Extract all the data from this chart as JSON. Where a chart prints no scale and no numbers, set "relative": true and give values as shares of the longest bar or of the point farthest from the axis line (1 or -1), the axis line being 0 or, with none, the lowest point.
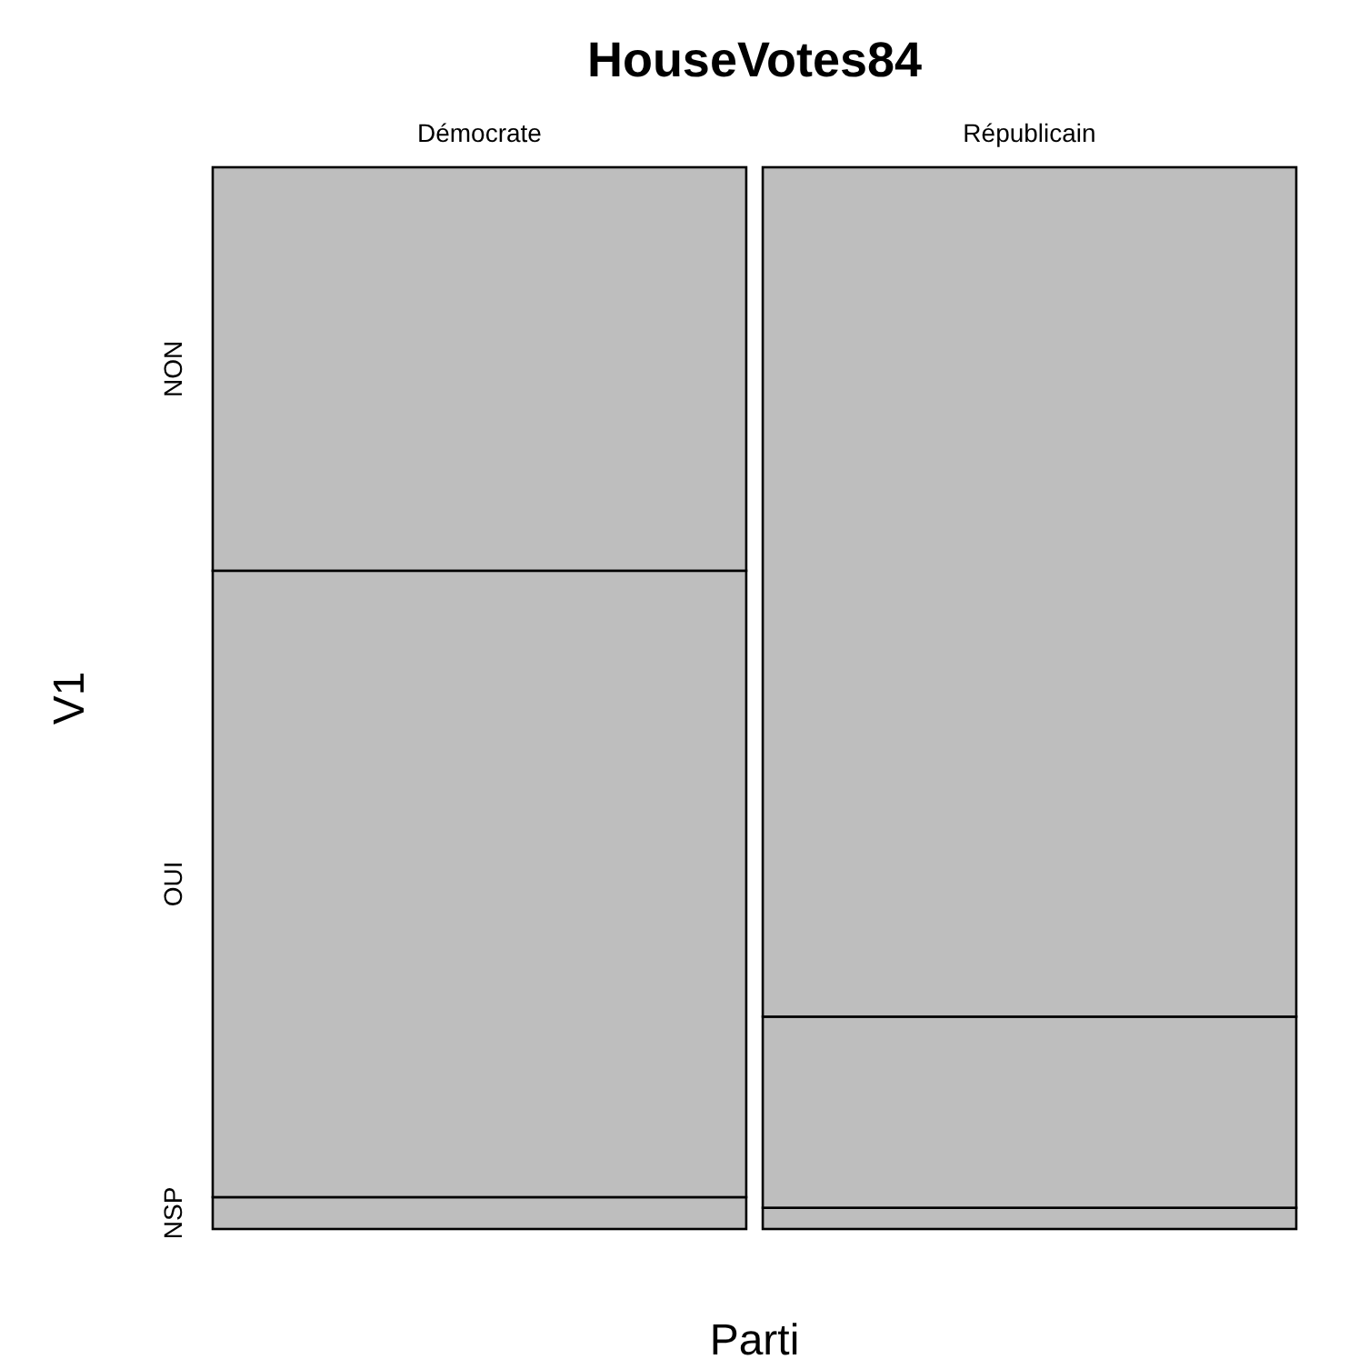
{
  "chart_data": {
    "type": "bar",
    "title": "HouseVotes84",
    "xlabel": "Parti",
    "ylabel": "V1",
    "categories": [
      "Démocrate",
      "Républicain"
    ],
    "stacked": true,
    "relative": true,
    "grid": false,
    "legend": false,
    "series": [
      {
        "name": "NSP",
        "color": "#bebebe",
        "values": [
          0.03,
          0.02
        ]
      },
      {
        "name": "OUI",
        "color": "#bebebe",
        "values": [
          0.59,
          0.18
        ]
      },
      {
        "name": "NON",
        "color": "#bebebe",
        "values": [
          0.38,
          0.8
        ]
      }
    ]
  }
}
